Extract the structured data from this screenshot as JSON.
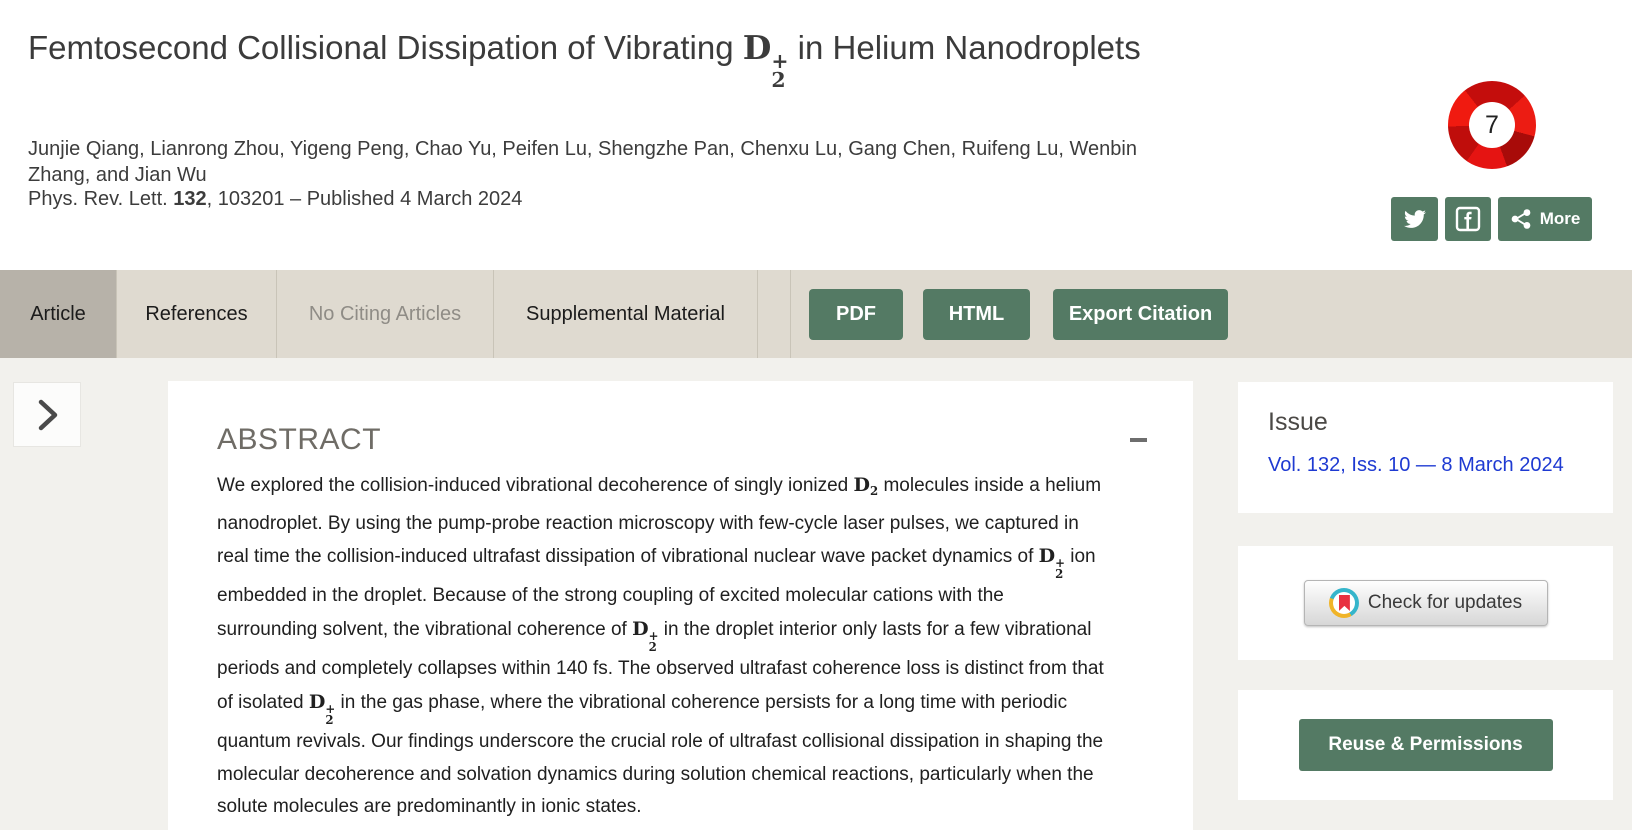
{
  "header": {
    "title_segments": [
      {
        "t": "text",
        "v": "Femtosecond Collisional Dissipation of Vibrating "
      },
      {
        "t": "math",
        "base": "D",
        "sub": "2",
        "sup": "+"
      },
      {
        "t": "text",
        "v": " in Helium Nanodroplets"
      }
    ],
    "authors": "Junjie Qiang, Lianrong Zhou, Yigeng Peng, Chao Yu, Peifen Lu, Shengzhe Pan, Chenxu Lu, Gang Chen, Ruifeng Lu, Wenbin Zhang, and Jian Wu",
    "pub_segments": [
      {
        "t": "text",
        "v": "Phys. Rev. Lett. "
      },
      {
        "t": "b",
        "v": "132"
      },
      {
        "t": "text",
        "v": ", 103201 – Published 4 March 2024"
      }
    ],
    "altmetric_count": "7",
    "share_more_label": "More",
    "icons": {
      "twitter": "twitter-bird",
      "facebook": "facebook-f",
      "more": "share-nodes"
    }
  },
  "tabs": [
    {
      "label": "Article",
      "state": "active"
    },
    {
      "label": "References",
      "state": "normal"
    },
    {
      "label": "No Citing Articles",
      "state": "disabled"
    },
    {
      "label": "Supplemental Material",
      "state": "normal"
    }
  ],
  "actions": {
    "pdf_label": "PDF",
    "html_label": "HTML",
    "export_label": "Export Citation"
  },
  "abstract": {
    "heading": "ABSTRACT",
    "collapse_icon": "minus",
    "segments": [
      {
        "t": "text",
        "v": "We explored the collision-induced vibrational decoherence of singly ionized "
      },
      {
        "t": "math",
        "base": "D",
        "sub": "2"
      },
      {
        "t": "text",
        "v": " molecules inside a helium nanodroplet. By using the pump-probe reaction microscopy with few-cycle laser pulses, we captured in real time the collision-induced ultrafast dissipation of vibrational nuclear wave packet dynamics of "
      },
      {
        "t": "math",
        "base": "D",
        "sub": "2",
        "sup": "+"
      },
      {
        "t": "text",
        "v": " ion embedded in the droplet. Because of the strong coupling of excited molecular cations with the surrounding solvent, the vibrational coherence of "
      },
      {
        "t": "math",
        "base": "D",
        "sub": "2",
        "sup": "+"
      },
      {
        "t": "text",
        "v": " in the droplet interior only lasts for a few vibrational periods and completely collapses within 140 fs. The observed ultrafast coherence loss is distinct from that of isolated "
      },
      {
        "t": "math",
        "base": "D",
        "sub": "2",
        "sup": "+"
      },
      {
        "t": "text",
        "v": " in the gas phase, where the vibrational coherence persists for a long time with periodic quantum revivals. Our findings underscore the crucial role of ultrafast collisional dissipation in shaping the molecular decoherence and solvation dynamics during solution chemical reactions, particularly when the solute molecules are predominantly in ionic states."
      }
    ]
  },
  "sidebar": {
    "issue": {
      "heading": "Issue",
      "link_label": "Vol. 132, Iss. 10 — 8 March 2024"
    },
    "updates": {
      "button_label": "Check for updates"
    },
    "reuse": {
      "button_label": "Reuse & Permissions"
    }
  },
  "colors": {
    "accent_green": "#547a64",
    "link_blue": "#1e3ad2",
    "altmetric_red": "#d11010",
    "tabbar_bg": "#dfdad0",
    "active_tab_bg": "#b7b2a9"
  }
}
